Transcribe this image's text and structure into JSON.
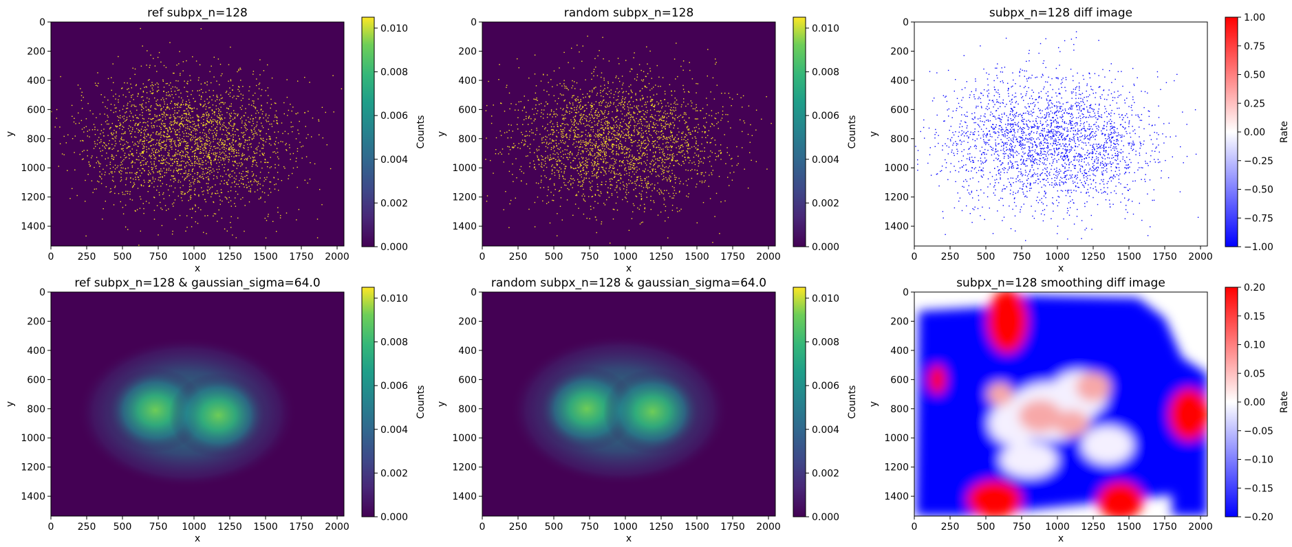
{
  "figure": {
    "panels": [
      {
        "id": "p1",
        "title": "ref subpx_n=128",
        "xlabel": "x",
        "ylabel": "y",
        "colorbar_label": "Counts",
        "colormap": "viridis",
        "kind": "scatter-density"
      },
      {
        "id": "p2",
        "title": "random subpx_n=128",
        "xlabel": "x",
        "ylabel": "y",
        "colorbar_label": "Counts",
        "colormap": "viridis",
        "kind": "scatter-density"
      },
      {
        "id": "p3",
        "title": "subpx_n=128 diff image",
        "xlabel": "x",
        "ylabel": "y",
        "colorbar_label": "Rate",
        "colormap": "bwr",
        "kind": "scatter-diff"
      },
      {
        "id": "p4",
        "title": "ref subpx_n=128 & gaussian_sigma=64.0",
        "xlabel": "x",
        "ylabel": "y",
        "colorbar_label": "Counts",
        "colormap": "viridis",
        "kind": "smooth-density"
      },
      {
        "id": "p5",
        "title": "random subpx_n=128 & gaussian_sigma=64.0",
        "xlabel": "x",
        "ylabel": "y",
        "colorbar_label": "Counts",
        "colormap": "viridis",
        "kind": "smooth-density"
      },
      {
        "id": "p6",
        "title": "subpx_n=128 smoothing diff image",
        "xlabel": "x",
        "ylabel": "y",
        "colorbar_label": "Rate",
        "colormap": "bwr",
        "kind": "smooth-diff"
      }
    ]
  },
  "chart_data": [
    {
      "type": "heatmap",
      "title": "ref subpx_n=128",
      "xlabel": "x",
      "ylabel": "y",
      "xlim": [
        0,
        2048
      ],
      "ylim": [
        1536,
        0
      ],
      "x_ticks": [
        0,
        250,
        500,
        750,
        1000,
        1250,
        1500,
        1750,
        2000
      ],
      "y_ticks": [
        0,
        200,
        400,
        600,
        800,
        1000,
        1200,
        1400
      ],
      "colorbar": {
        "label": "Counts",
        "range": [
          0,
          0.0105
        ],
        "ticks": [
          "0.000",
          "0.002",
          "0.004",
          "0.006",
          "0.008",
          "0.010"
        ]
      },
      "description_values": {
        "clusters": [
          {
            "x": 720,
            "y": 800
          },
          {
            "x": 1170,
            "y": 830
          }
        ],
        "background": 0.0
      }
    },
    {
      "type": "heatmap",
      "title": "random subpx_n=128",
      "xlabel": "x",
      "ylabel": "y",
      "xlim": [
        0,
        2048
      ],
      "ylim": [
        1536,
        0
      ],
      "x_ticks": [
        0,
        250,
        500,
        750,
        1000,
        1250,
        1500,
        1750,
        2000
      ],
      "y_ticks": [
        0,
        200,
        400,
        600,
        800,
        1000,
        1200,
        1400
      ],
      "colorbar": {
        "label": "Counts",
        "range": [
          0,
          0.0105
        ],
        "ticks": [
          "0.000",
          "0.002",
          "0.004",
          "0.006",
          "0.008",
          "0.010"
        ]
      },
      "description_values": {
        "clusters": [
          {
            "x": 720,
            "y": 790
          },
          {
            "x": 1180,
            "y": 820
          }
        ],
        "background": 0.0
      }
    },
    {
      "type": "heatmap",
      "title": "subpx_n=128 diff image",
      "xlabel": "x",
      "ylabel": "y",
      "xlim": [
        0,
        2048
      ],
      "ylim": [
        1536,
        0
      ],
      "x_ticks": [
        0,
        250,
        500,
        750,
        1000,
        1250,
        1500,
        1750,
        2000
      ],
      "y_ticks": [
        0,
        200,
        400,
        600,
        800,
        1000,
        1200,
        1400
      ],
      "colorbar": {
        "label": "Rate",
        "range": [
          -1,
          1
        ],
        "ticks": [
          "-1.00",
          "-0.75",
          "-0.50",
          "-0.25",
          "0.00",
          "0.25",
          "0.50",
          "0.75",
          "1.00"
        ]
      },
      "description_values": {
        "dominant_value": -1.0
      }
    },
    {
      "type": "heatmap",
      "title": "ref subpx_n=128 & gaussian_sigma=64.0",
      "xlabel": "x",
      "ylabel": "y",
      "xlim": [
        0,
        2048
      ],
      "ylim": [
        1536,
        0
      ],
      "x_ticks": [
        0,
        250,
        500,
        750,
        1000,
        1250,
        1500,
        1750,
        2000
      ],
      "y_ticks": [
        0,
        200,
        400,
        600,
        800,
        1000,
        1200,
        1400
      ],
      "colorbar": {
        "label": "Counts",
        "range": [
          0,
          0.0105
        ],
        "ticks": [
          "0.000",
          "0.002",
          "0.004",
          "0.006",
          "0.008",
          "0.010"
        ]
      },
      "description_values": {
        "peaks": [
          {
            "x": 730,
            "y": 810,
            "value": 0.0075
          },
          {
            "x": 1170,
            "y": 845,
            "value": 0.0073
          }
        ]
      }
    },
    {
      "type": "heatmap",
      "title": "random subpx_n=128 & gaussian_sigma=64.0",
      "xlabel": "x",
      "ylabel": "y",
      "xlim": [
        0,
        2048
      ],
      "ylim": [
        1536,
        0
      ],
      "x_ticks": [
        0,
        250,
        500,
        750,
        1000,
        1250,
        1500,
        1750,
        2000
      ],
      "y_ticks": [
        0,
        200,
        400,
        600,
        800,
        1000,
        1200,
        1400
      ],
      "colorbar": {
        "label": "Counts",
        "range": [
          0,
          0.0105
        ],
        "ticks": [
          "0.000",
          "0.002",
          "0.004",
          "0.006",
          "0.008",
          "0.010"
        ]
      },
      "description_values": {
        "peaks": [
          {
            "x": 730,
            "y": 800,
            "value": 0.0076
          },
          {
            "x": 1190,
            "y": 820,
            "value": 0.0074
          }
        ]
      }
    },
    {
      "type": "heatmap",
      "title": "subpx_n=128 smoothing diff image",
      "xlabel": "x",
      "ylabel": "y",
      "xlim": [
        0,
        2048
      ],
      "ylim": [
        1536,
        0
      ],
      "x_ticks": [
        0,
        250,
        500,
        750,
        1000,
        1250,
        1500,
        1750,
        2000
      ],
      "y_ticks": [
        0,
        200,
        400,
        600,
        800,
        1000,
        1200,
        1400
      ],
      "colorbar": {
        "label": "Rate",
        "range": [
          -0.2,
          0.2
        ],
        "ticks": [
          "-0.20",
          "-0.15",
          "-0.10",
          "-0.05",
          "0.00",
          "0.05",
          "0.10",
          "0.15",
          "0.20"
        ]
      },
      "description_values": {
        "background": -0.2,
        "red_blobs": [
          {
            "x": 650,
            "y": 200
          },
          {
            "x": 1920,
            "y": 830
          },
          {
            "x": 150,
            "y": 600
          },
          {
            "x": 560,
            "y": 1450
          },
          {
            "x": 1430,
            "y": 1430
          }
        ]
      }
    }
  ]
}
